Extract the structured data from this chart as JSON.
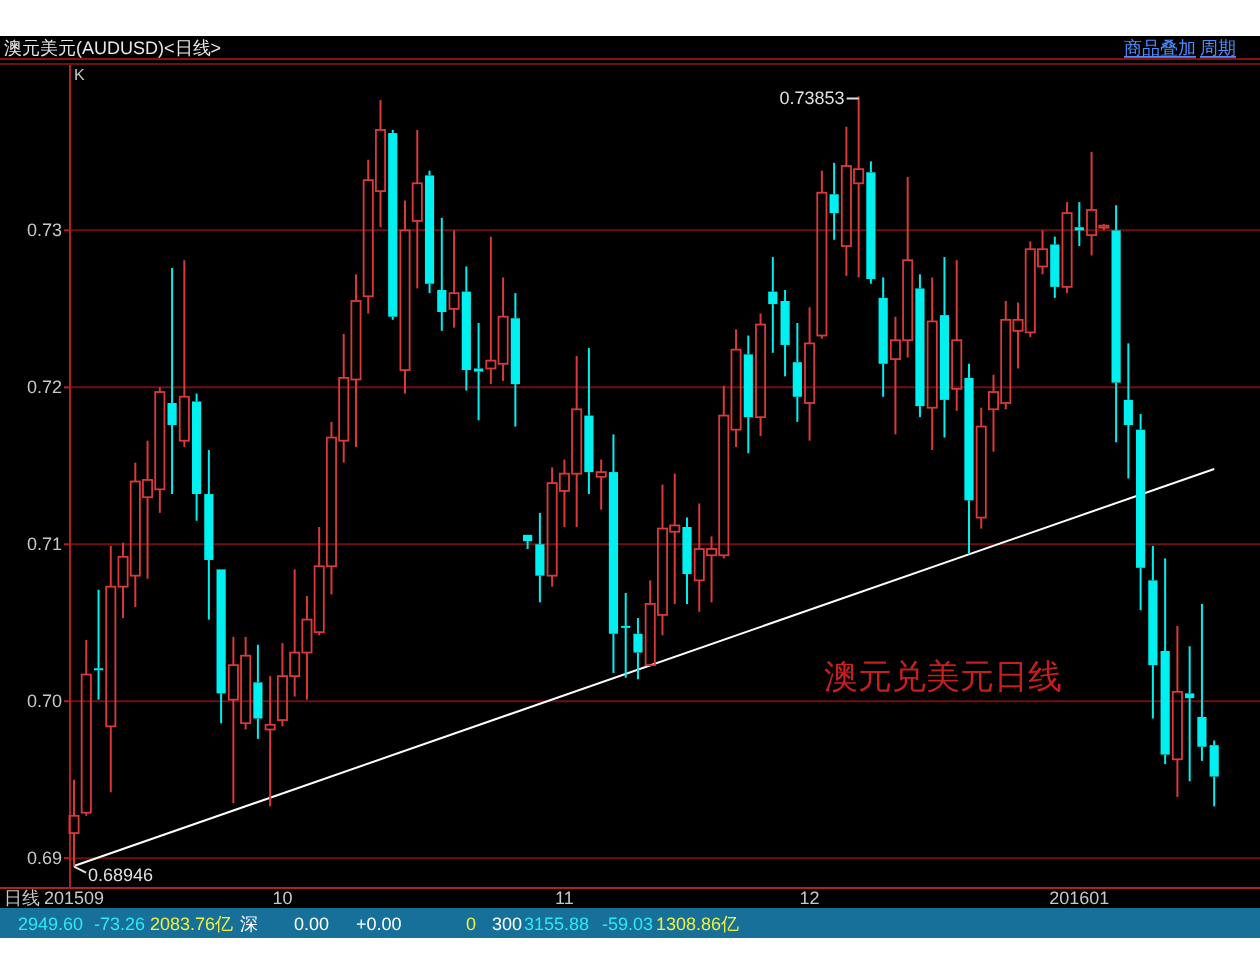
{
  "chart_data": {
    "type": "candlestick",
    "title": "澳元美元(AUDUSD)<日线>",
    "categories": [
      "201509",
      null,
      null,
      null,
      null,
      null,
      null,
      null,
      null,
      null,
      null,
      null,
      null,
      null,
      null,
      null,
      null,
      "10",
      null,
      null,
      null,
      null,
      null,
      null,
      null,
      null,
      null,
      null,
      null,
      null,
      null,
      null,
      null,
      null,
      null,
      null,
      null,
      null,
      null,
      null,
      "11",
      null,
      null,
      null,
      null,
      null,
      null,
      null,
      null,
      null,
      null,
      null,
      null,
      null,
      null,
      null,
      null,
      null,
      null,
      null,
      "12",
      null,
      null,
      null,
      null,
      null,
      null,
      null,
      null,
      null,
      null,
      null,
      null,
      null,
      null,
      null,
      null,
      null,
      null,
      null,
      null,
      null,
      "201601",
      null,
      null,
      null,
      null,
      null,
      null,
      null,
      null,
      null,
      null,
      null
    ],
    "ohlc": [
      [
        0.6916,
        0.695,
        0.68946,
        0.6927
      ],
      [
        0.6929,
        0.7039,
        0.6927,
        0.7017
      ],
      [
        0.7021,
        0.7071,
        0.7001,
        0.702
      ],
      [
        0.6984,
        0.7099,
        0.6942,
        0.7073
      ],
      [
        0.7073,
        0.7101,
        0.7053,
        0.7092
      ],
      [
        0.708,
        0.7152,
        0.706,
        0.714
      ],
      [
        0.713,
        0.7166,
        0.7078,
        0.7141
      ],
      [
        0.7135,
        0.72,
        0.712,
        0.7197
      ],
      [
        0.719,
        0.7276,
        0.7132,
        0.7176
      ],
      [
        0.7166,
        0.7281,
        0.7162,
        0.7194
      ],
      [
        0.7191,
        0.7196,
        0.7115,
        0.7132
      ],
      [
        0.7132,
        0.716,
        0.7052,
        0.709
      ],
      [
        0.7084,
        0.7084,
        0.6986,
        0.7005
      ],
      [
        0.7001,
        0.7041,
        0.6935,
        0.7023
      ],
      [
        0.6986,
        0.7041,
        0.6982,
        0.7029
      ],
      [
        0.7012,
        0.7036,
        0.6976,
        0.6989
      ],
      [
        0.6982,
        0.7016,
        0.6933,
        0.6985
      ],
      [
        0.6988,
        0.7037,
        0.6984,
        0.7016
      ],
      [
        0.7016,
        0.7084,
        0.7003,
        0.7031
      ],
      [
        0.7031,
        0.7067,
        0.7001,
        0.7052
      ],
      [
        0.7044,
        0.7111,
        0.7042,
        0.7086
      ],
      [
        0.7086,
        0.7178,
        0.7068,
        0.7168
      ],
      [
        0.7166,
        0.7234,
        0.7152,
        0.7206
      ],
      [
        0.7205,
        0.7272,
        0.7162,
        0.7255
      ],
      [
        0.7258,
        0.7345,
        0.7247,
        0.7332
      ],
      [
        0.7325,
        0.7383,
        0.7302,
        0.7364
      ],
      [
        0.7362,
        0.7364,
        0.7243,
        0.7245
      ],
      [
        0.7211,
        0.7319,
        0.7196,
        0.73
      ],
      [
        0.7306,
        0.7364,
        0.7263,
        0.733
      ],
      [
        0.7335,
        0.7338,
        0.726,
        0.7266
      ],
      [
        0.7262,
        0.7308,
        0.7236,
        0.7248
      ],
      [
        0.725,
        0.73,
        0.7238,
        0.726
      ],
      [
        0.7261,
        0.7277,
        0.7198,
        0.7211
      ],
      [
        0.7212,
        0.7241,
        0.7179,
        0.721
      ],
      [
        0.7212,
        0.7296,
        0.7202,
        0.7217
      ],
      [
        0.7215,
        0.727,
        0.7204,
        0.7245
      ],
      [
        0.7244,
        0.726,
        0.7175,
        0.7202
      ],
      [
        0.7106,
        0.7106,
        0.7097,
        0.7102
      ],
      [
        0.71,
        0.712,
        0.7063,
        0.708
      ],
      [
        0.708,
        0.7149,
        0.7073,
        0.7139
      ],
      [
        0.7134,
        0.7154,
        0.7111,
        0.7145
      ],
      [
        0.7145,
        0.722,
        0.7111,
        0.7186
      ],
      [
        0.7182,
        0.7225,
        0.7132,
        0.7146
      ],
      [
        0.7143,
        0.7154,
        0.7122,
        0.7146
      ],
      [
        0.7146,
        0.717,
        0.7018,
        0.7043
      ],
      [
        0.7048,
        0.7069,
        0.7015,
        0.7047
      ],
      [
        0.7043,
        0.7053,
        0.7014,
        0.7031
      ],
      [
        0.7023,
        0.7077,
        0.7023,
        0.7062
      ],
      [
        0.7055,
        0.7138,
        0.7042,
        0.711
      ],
      [
        0.7108,
        0.7145,
        0.7062,
        0.7112
      ],
      [
        0.7111,
        0.7117,
        0.7062,
        0.7081
      ],
      [
        0.7077,
        0.7126,
        0.7057,
        0.7097
      ],
      [
        0.7093,
        0.7105,
        0.7063,
        0.7097
      ],
      [
        0.7093,
        0.7201,
        0.7091,
        0.7182
      ],
      [
        0.7173,
        0.7237,
        0.7162,
        0.7224
      ],
      [
        0.7221,
        0.7233,
        0.7158,
        0.7181
      ],
      [
        0.7181,
        0.7247,
        0.7169,
        0.724
      ],
      [
        0.7261,
        0.7283,
        0.7222,
        0.7253
      ],
      [
        0.7255,
        0.7262,
        0.7207,
        0.7227
      ],
      [
        0.7216,
        0.7241,
        0.7178,
        0.7194
      ],
      [
        0.719,
        0.7251,
        0.7166,
        0.7228
      ],
      [
        0.7233,
        0.7338,
        0.7231,
        0.7324
      ],
      [
        0.7323,
        0.7343,
        0.7294,
        0.7311
      ],
      [
        0.729,
        0.7366,
        0.7271,
        0.7341
      ],
      [
        0.733,
        0.73853,
        0.727,
        0.7339
      ],
      [
        0.7337,
        0.7344,
        0.7266,
        0.7269
      ],
      [
        0.7257,
        0.727,
        0.7194,
        0.7215
      ],
      [
        0.7218,
        0.7245,
        0.717,
        0.723
      ],
      [
        0.723,
        0.7334,
        0.7219,
        0.7281
      ],
      [
        0.7263,
        0.7272,
        0.7181,
        0.7188
      ],
      [
        0.7187,
        0.727,
        0.716,
        0.7242
      ],
      [
        0.7246,
        0.7283,
        0.7168,
        0.7192
      ],
      [
        0.7199,
        0.7281,
        0.7185,
        0.723
      ],
      [
        0.7206,
        0.7215,
        0.7094,
        0.7128
      ],
      [
        0.7117,
        0.7187,
        0.711,
        0.7175
      ],
      [
        0.7186,
        0.7208,
        0.7159,
        0.7197
      ],
      [
        0.719,
        0.7255,
        0.7186,
        0.7243
      ],
      [
        0.7236,
        0.7254,
        0.7212,
        0.7243
      ],
      [
        0.7235,
        0.7293,
        0.7232,
        0.7288
      ],
      [
        0.7277,
        0.73,
        0.7272,
        0.7288
      ],
      [
        0.7291,
        0.7296,
        0.7257,
        0.7264
      ],
      [
        0.7264,
        0.7318,
        0.726,
        0.7311
      ],
      [
        0.7302,
        0.7318,
        0.729,
        0.73
      ],
      [
        0.7297,
        0.735,
        0.7284,
        0.7313
      ],
      [
        0.7302,
        0.7304,
        0.73,
        0.7303
      ],
      [
        0.73,
        0.7316,
        0.7165,
        0.7203
      ],
      [
        0.7192,
        0.7228,
        0.7142,
        0.7176
      ],
      [
        0.7173,
        0.7183,
        0.7058,
        0.7085
      ],
      [
        0.7077,
        0.7099,
        0.6989,
        0.7023
      ],
      [
        0.7032,
        0.7091,
        0.696,
        0.6966
      ],
      [
        0.6963,
        0.7048,
        0.6939,
        0.7006
      ],
      [
        0.7005,
        0.7035,
        0.6949,
        0.7002
      ],
      [
        0.699,
        0.7062,
        0.6962,
        0.6971
      ],
      [
        0.6972,
        0.6975,
        0.6933,
        0.6952
      ]
    ],
    "series": [
      {
        "type": "line",
        "color": "#ffffff",
        "values": [
          0.6895,
          null,
          null,
          null,
          null,
          null,
          null,
          null,
          null,
          null,
          null,
          null,
          null,
          null,
          null,
          null,
          null,
          null,
          null,
          null,
          null,
          null,
          null,
          null,
          null,
          null,
          null,
          null,
          null,
          null,
          null,
          null,
          null,
          null,
          null,
          null,
          null,
          null,
          null,
          null,
          null,
          null,
          null,
          null,
          null,
          null,
          null,
          null,
          null,
          null,
          null,
          null,
          null,
          null,
          null,
          null,
          null,
          null,
          null,
          null,
          null,
          null,
          null,
          null,
          null,
          null,
          null,
          null,
          null,
          null,
          null,
          null,
          null,
          null,
          null,
          null,
          null,
          null,
          null,
          null,
          null,
          null,
          null,
          null,
          null,
          null,
          null,
          null,
          null,
          null,
          null,
          null,
          null,
          0.7148
        ]
      }
    ],
    "ylim": [
      0.6881,
      0.7406
    ],
    "yticks": [
      0.69,
      {
        "value": 0.7,
        "label": "0.70"
      },
      0.71,
      0.72,
      0.73
    ],
    "grid": "y",
    "annotations": [
      "K",
      "日线",
      "商品叠加",
      "周期",
      "澳元兑美元日线",
      "2949.60",
      "-73.26",
      "2083.76亿",
      "深",
      "0.00",
      "+0.00",
      "0",
      "300",
      "3155.88",
      "-59.03",
      "1308.86亿",
      "0.73853",
      "0.68946"
    ]
  }
}
